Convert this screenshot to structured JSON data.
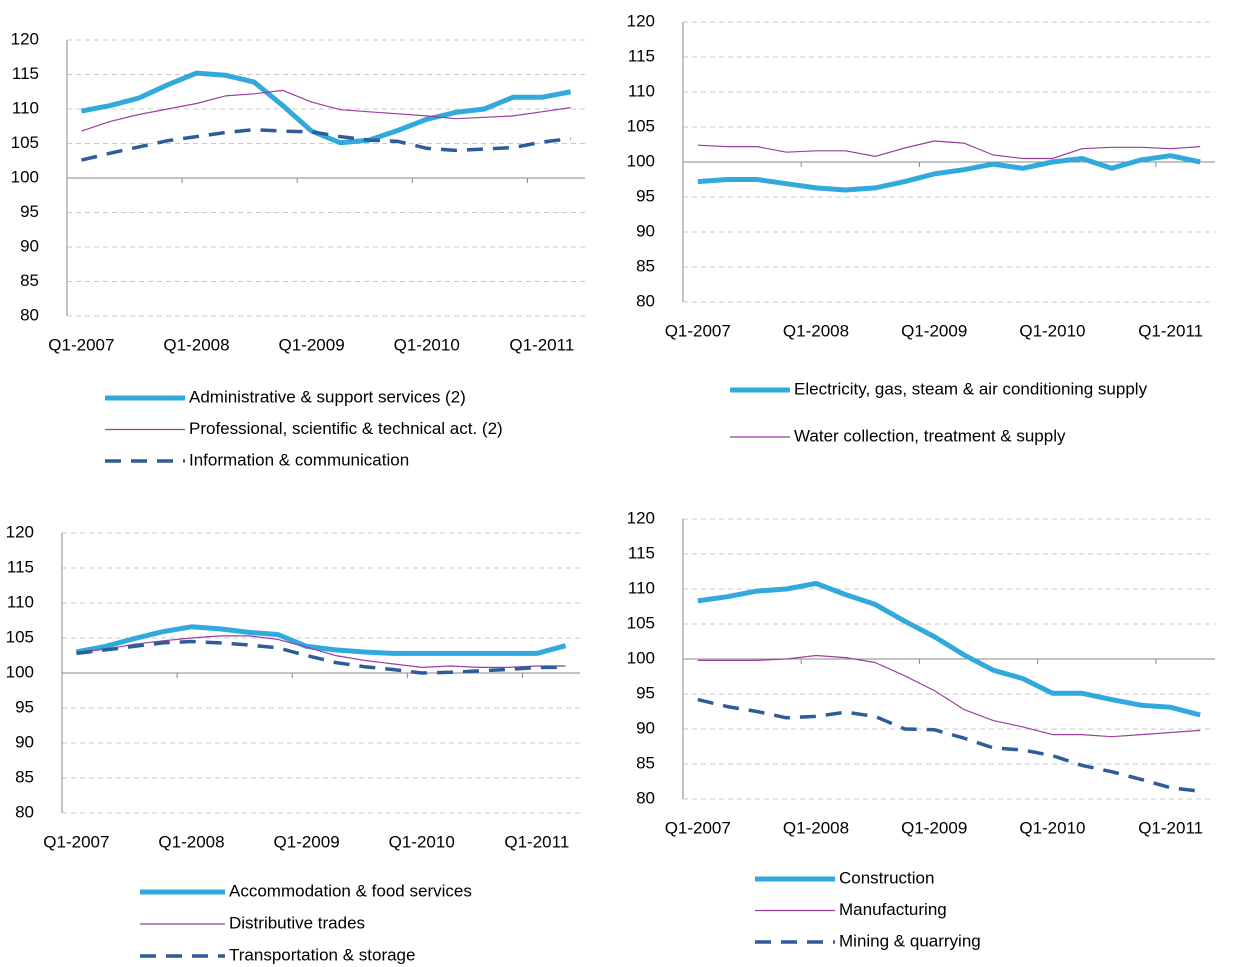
{
  "chart_data": [
    {
      "type": "line",
      "categories": [
        "Q1-2007",
        null,
        null,
        null,
        "Q1-2008",
        null,
        null,
        null,
        "Q1-2009",
        null,
        null,
        null,
        "Q1-2010",
        null,
        null,
        null,
        "Q1-2011",
        null
      ],
      "ylim": [
        80,
        120
      ],
      "yticks": [
        80,
        85,
        90,
        95,
        100,
        105,
        110,
        115,
        120
      ],
      "grid": true,
      "x_axis_crosses": 100,
      "series": [
        {
          "name": "Administrative & support services (2)",
          "color": "#31a9dc",
          "style": "thick",
          "values": [
            109.7,
            110.5,
            111.6,
            113.5,
            115.2,
            114.9,
            113.9,
            110.5,
            106.8,
            105.1,
            105.5,
            106.9,
            108.5,
            109.5,
            110.0,
            111.7,
            111.7,
            112.5
          ]
        },
        {
          "name": "Professional, scientific & technical act. (2)",
          "color": "#9b3fa0",
          "style": "thin",
          "values": [
            106.8,
            108.2,
            109.2,
            110.0,
            110.8,
            111.9,
            112.2,
            112.7,
            111.0,
            109.9,
            109.6,
            109.3,
            109.0,
            108.6,
            108.8,
            109.0,
            109.6,
            110.2
          ]
        },
        {
          "name": "Information & communication",
          "color": "#2e5c9b",
          "style": "dashed",
          "values": [
            102.6,
            103.6,
            104.5,
            105.4,
            106.0,
            106.6,
            107.0,
            106.8,
            106.7,
            106.0,
            105.5,
            105.3,
            104.3,
            104.0,
            104.2,
            104.4,
            105.2,
            105.7
          ]
        }
      ]
    },
    {
      "type": "line",
      "categories": [
        "Q1-2007",
        null,
        null,
        null,
        "Q1-2008",
        null,
        null,
        null,
        "Q1-2009",
        null,
        null,
        null,
        "Q1-2010",
        null,
        null,
        null,
        "Q1-2011",
        null
      ],
      "ylim": [
        80,
        120
      ],
      "yticks": [
        80,
        85,
        90,
        95,
        100,
        105,
        110,
        115,
        120
      ],
      "grid": true,
      "x_axis_crosses": 100,
      "series": [
        {
          "name": "Electricity, gas, steam & air conditioning supply",
          "color": "#31a9dc",
          "style": "thick",
          "values": [
            97.2,
            97.5,
            97.5,
            96.9,
            96.3,
            96.0,
            96.3,
            97.2,
            98.3,
            98.9,
            99.7,
            99.1,
            100.0,
            100.5,
            99.1,
            100.3,
            100.9,
            100.0
          ]
        },
        {
          "name": "Water collection, treatment & supply",
          "color": "#9b3fa0",
          "style": "thin",
          "values": [
            102.4,
            102.2,
            102.2,
            101.4,
            101.6,
            101.6,
            100.8,
            102.0,
            103.0,
            102.7,
            101.0,
            100.5,
            100.5,
            101.9,
            102.1,
            102.1,
            101.9,
            102.2
          ]
        }
      ]
    },
    {
      "type": "line",
      "categories": [
        "Q1-2007",
        null,
        null,
        null,
        "Q1-2008",
        null,
        null,
        null,
        "Q1-2009",
        null,
        null,
        null,
        "Q1-2010",
        null,
        null,
        null,
        "Q1-2011",
        null
      ],
      "ylim": [
        80,
        120
      ],
      "yticks": [
        80,
        85,
        90,
        95,
        100,
        105,
        110,
        115,
        120
      ],
      "grid": true,
      "x_axis_crosses": 100,
      "series": [
        {
          "name": "Accommodation & food services",
          "color": "#31a9dc",
          "style": "thick",
          "values": [
            103.0,
            103.8,
            104.9,
            105.9,
            106.6,
            106.3,
            105.8,
            105.5,
            103.8,
            103.3,
            103.0,
            102.8,
            102.8,
            102.8,
            102.8,
            102.8,
            102.8,
            103.9
          ]
        },
        {
          "name": "Distributive trades",
          "color": "#9b3fa0",
          "style": "thin",
          "values": [
            102.9,
            103.4,
            104.1,
            104.6,
            105.0,
            105.3,
            105.3,
            104.8,
            103.7,
            102.5,
            101.8,
            101.3,
            100.8,
            101.0,
            100.8,
            100.8,
            101.0,
            101.0
          ]
        },
        {
          "name": "Transportation & storage",
          "color": "#2e5c9b",
          "style": "dashed",
          "values": [
            102.8,
            103.3,
            103.8,
            104.3,
            104.5,
            104.3,
            104.0,
            103.6,
            102.5,
            101.5,
            100.9,
            100.5,
            100.0,
            100.1,
            100.3,
            100.5,
            100.8,
            100.8
          ]
        }
      ]
    },
    {
      "type": "line",
      "categories": [
        "Q1-2007",
        null,
        null,
        null,
        "Q1-2008",
        null,
        null,
        null,
        "Q1-2009",
        null,
        null,
        null,
        "Q1-2010",
        null,
        null,
        null,
        "Q1-2011",
        null
      ],
      "ylim": [
        80,
        120
      ],
      "yticks": [
        80,
        85,
        90,
        95,
        100,
        105,
        110,
        115,
        120
      ],
      "grid": true,
      "x_axis_crosses": 100,
      "series": [
        {
          "name": "Construction",
          "color": "#31a9dc",
          "style": "thick",
          "values": [
            108.3,
            108.9,
            109.7,
            110.0,
            110.8,
            109.2,
            107.8,
            105.4,
            103.2,
            100.6,
            98.4,
            97.2,
            95.1,
            95.1,
            94.2,
            93.4,
            93.1,
            92.0
          ]
        },
        {
          "name": "Manufacturing",
          "color": "#9b3fa0",
          "style": "thin",
          "values": [
            99.8,
            99.8,
            99.8,
            100.0,
            100.5,
            100.2,
            99.5,
            97.6,
            95.5,
            92.8,
            91.2,
            90.3,
            89.2,
            89.2,
            88.9,
            89.2,
            89.5,
            89.8
          ]
        },
        {
          "name": "Mining & quarrying",
          "color": "#2e5c9b",
          "style": "dashed",
          "values": [
            94.2,
            93.2,
            92.5,
            91.6,
            91.8,
            92.4,
            91.8,
            90.0,
            89.9,
            88.7,
            87.3,
            87.0,
            86.2,
            84.8,
            83.9,
            82.8,
            81.6,
            81.1
          ]
        }
      ]
    }
  ]
}
